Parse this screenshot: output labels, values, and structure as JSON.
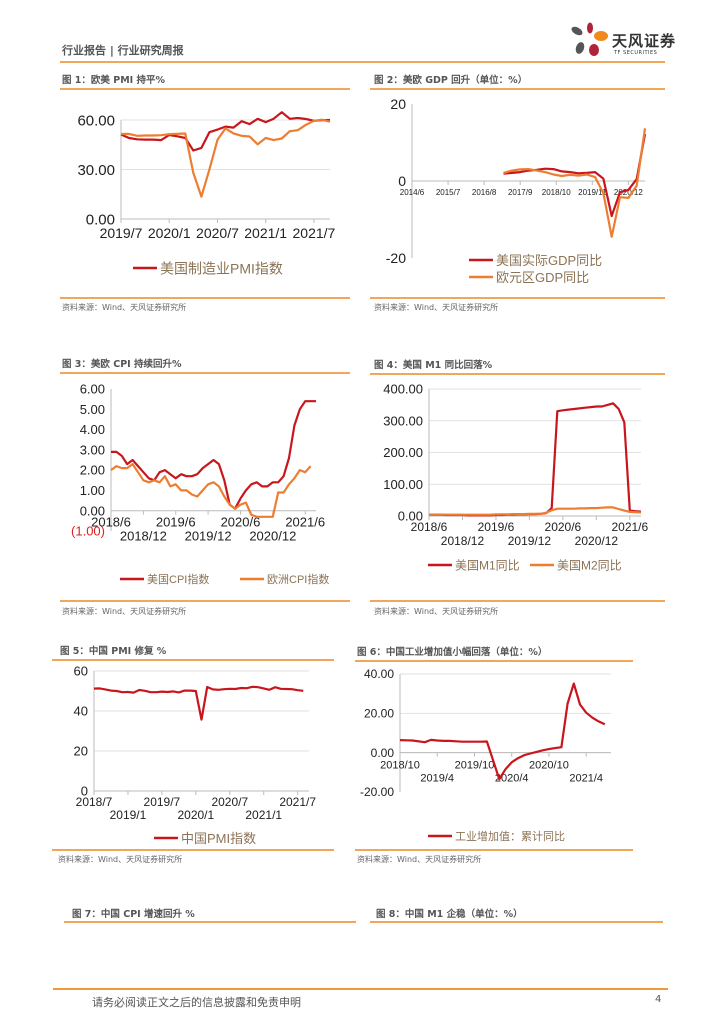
{
  "header": {
    "report_type": "行业报告 | 行业研究周报"
  },
  "logo": {
    "name": "天风证券",
    "sub": "TF SECURITIES"
  },
  "figures": [
    {
      "title": "图 1：欧美 PMI 持平%",
      "source": "资料来源：Wind、天风证券研究所"
    },
    {
      "title": "图 2：美欧 GDP 回升（单位：%）",
      "source": "资料来源：Wind、天风证券研究所"
    },
    {
      "title": "图 3：美欧 CPI 持续回升%",
      "source": "资料来源：Wind、天风证券研究所"
    },
    {
      "title": "图 4：美国 M1 同比回落%",
      "source": "资料来源：Wind、天风证券研究所"
    },
    {
      "title": "图 5：中国 PMI 修复 %",
      "source": "资料来源：Wind、天风证券研究所"
    },
    {
      "title": "图 6：中国工业增加值小幅回落（单位：%）",
      "source": "资料来源：Wind、天风证券研究所"
    },
    {
      "title": "图 7：中国 CPI 增速回升 %"
    },
    {
      "title": "图 8：中国 M1 企稳（单位：%）"
    }
  ],
  "footer": {
    "disclaimer": "请务必阅读正文之后的信息披露和免责申明",
    "page_number": "4"
  },
  "colors": {
    "accent": "#F2A65A",
    "red": "#C8161D",
    "orange": "#ED7D31",
    "legend_text": "#8B7355",
    "negative_label": "#E02020"
  },
  "chart_data": [
    {
      "type": "line",
      "grid": true,
      "legend": "bottom",
      "xlim": [
        "2019/7",
        "2021/9"
      ],
      "ylim": [
        0,
        60
      ],
      "xticks": [
        "2019/7",
        "2020/1",
        "2020/7",
        "2021/1",
        "2021/7"
      ],
      "yticks": [
        0,
        30,
        60
      ],
      "ytick_labels": [
        "0.00",
        "30.00",
        "60.00"
      ],
      "series": [
        {
          "name": "美国制造业PMI指数",
          "color": "#C8161D",
          "start": "2019/7",
          "values": [
            51.2,
            49.1,
            48.3,
            48.1,
            48.1,
            47.8,
            50.9,
            50.1,
            49.1,
            41.5,
            43.1,
            52.6,
            54.2,
            56.0,
            55.4,
            59.3,
            57.5,
            60.7,
            58.7,
            60.8,
            64.7,
            60.7,
            61.2,
            60.6,
            59.5,
            59.9,
            60.0
          ]
        },
        {
          "color": "#ED7D31",
          "start": "2019/7",
          "values": [
            51.5,
            51.6,
            50.4,
            50.6,
            50.6,
            50.8,
            51.4,
            51.6,
            51.8,
            28.0,
            13.6,
            30.0,
            48.0,
            54.9,
            51.9,
            50.4,
            50.0,
            45.3,
            49.1,
            47.8,
            48.8,
            53.2,
            53.8,
            57.1,
            59.5,
            60.2,
            59.0
          ]
        }
      ]
    },
    {
      "type": "line",
      "grid": false,
      "legend": "bottom",
      "xlim": [
        "2014/6",
        "2021/6"
      ],
      "ylim": [
        -20,
        20
      ],
      "xticks": [
        "2014/6",
        "2015/7",
        "2016/8",
        "2017/9",
        "2018/10",
        "2019/11",
        "2020/12"
      ],
      "yticks": [
        -20,
        0,
        20
      ],
      "ytick_labels": [
        "-20",
        "0",
        "20"
      ],
      "series": [
        {
          "name": "美国实际GDP同比",
          "color": "#C8161D",
          "start": "2017/3",
          "step_months": 3,
          "values": [
            1.9,
            2.1,
            2.3,
            2.7,
            2.9,
            3.2,
            3.1,
            2.5,
            2.3,
            2.0,
            2.1,
            2.3,
            0.6,
            -9.1,
            -2.9,
            -2.3,
            0.5,
            12.2
          ]
        },
        {
          "name": "欧元区GDP同比",
          "color": "#ED7D31",
          "start": "2017/3",
          "step_months": 3,
          "values": [
            2.1,
            2.7,
            3.0,
            3.1,
            2.7,
            2.3,
            1.7,
            1.3,
            1.6,
            1.4,
            1.7,
            1.0,
            -3.2,
            -14.5,
            -4.2,
            -4.4,
            -1.2,
            13.7
          ]
        }
      ]
    },
    {
      "type": "line",
      "grid": false,
      "legend": "bottom",
      "xlim": [
        "2018/6",
        "2021/8"
      ],
      "ylim": [
        -1,
        6
      ],
      "xticks": [
        "2018/6",
        "2018/12",
        "2019/6",
        "2019/12",
        "2020/6",
        "2020/12",
        "2021/6"
      ],
      "yticks": [
        -1,
        0,
        1,
        2,
        3,
        4,
        5,
        6
      ],
      "ytick_labels": [
        "(1.00)",
        "0.00",
        "1.00",
        "2.00",
        "3.00",
        "4.00",
        "5.00",
        "6.00"
      ],
      "series": [
        {
          "name": "美国CPI指数",
          "color": "#C8161D",
          "start": "2018/6",
          "values": [
            2.9,
            2.9,
            2.7,
            2.3,
            2.5,
            2.2,
            1.9,
            1.6,
            1.5,
            1.9,
            2.0,
            1.8,
            1.6,
            1.8,
            1.7,
            1.7,
            1.8,
            2.1,
            2.3,
            2.5,
            2.3,
            1.5,
            0.3,
            0.1,
            0.6,
            1.0,
            1.3,
            1.4,
            1.2,
            1.2,
            1.4,
            1.4,
            1.7,
            2.6,
            4.2,
            5.0,
            5.4,
            5.4,
            5.4
          ]
        },
        {
          "name": "欧洲CPI指数",
          "color": "#ED7D31",
          "start": "2018/6",
          "values": [
            2.0,
            2.2,
            2.1,
            2.1,
            2.3,
            1.9,
            1.5,
            1.4,
            1.5,
            1.4,
            1.7,
            1.2,
            1.3,
            1.0,
            1.0,
            0.8,
            0.7,
            1.0,
            1.3,
            1.4,
            1.2,
            0.7,
            0.3,
            0.1,
            0.3,
            0.4,
            -0.2,
            -0.3,
            -0.3,
            -0.3,
            -0.3,
            0.9,
            0.9,
            1.3,
            1.6,
            2.0,
            1.9,
            2.2
          ]
        }
      ]
    },
    {
      "type": "line",
      "grid": true,
      "legend": "bottom",
      "xlim": [
        "2018/6",
        "2021/8"
      ],
      "ylim": [
        0,
        400
      ],
      "xticks": [
        "2018/6",
        "2018/12",
        "2019/6",
        "2019/12",
        "2020/6",
        "2020/12",
        "2021/6"
      ],
      "yticks": [
        0,
        100,
        200,
        300,
        400
      ],
      "ytick_labels": [
        "0.00",
        "100.00",
        "200.00",
        "300.00",
        "400.00"
      ],
      "series": [
        {
          "name": "美国M1同比",
          "color": "#C8161D",
          "start": "2018/6",
          "values": [
            4,
            4,
            4,
            3,
            3,
            3,
            3,
            2,
            2,
            2,
            2,
            2,
            3,
            3,
            4,
            4,
            5,
            5,
            6,
            6,
            7,
            9,
            25,
            330,
            333,
            335,
            337,
            339,
            341,
            343,
            345,
            345,
            350,
            355,
            337,
            295,
            17,
            15,
            14
          ]
        },
        {
          "name": "美国M2同比",
          "color": "#ED7D31",
          "start": "2018/6",
          "values": [
            4,
            4,
            4,
            4,
            4,
            4,
            4,
            4,
            4,
            4,
            4,
            4,
            5,
            5,
            5,
            6,
            6,
            6,
            7,
            7,
            7,
            10,
            18,
            23,
            23,
            23,
            23,
            24,
            24,
            25,
            25,
            26,
            27,
            27,
            22,
            17,
            13,
            12,
            11
          ]
        }
      ]
    },
    {
      "type": "line",
      "grid": true,
      "legend": "bottom",
      "xlim": [
        "2018/7",
        "2021/9"
      ],
      "ylim": [
        0,
        60
      ],
      "xticks": [
        "2018/7",
        "2019/1",
        "2019/7",
        "2020/1",
        "2020/7",
        "2021/1",
        "2021/7"
      ],
      "yticks": [
        0,
        20,
        40,
        60
      ],
      "ytick_labels": [
        "0",
        "20",
        "40",
        "60"
      ],
      "series": [
        {
          "name": "中国PMI指数",
          "color": "#C8161D",
          "start": "2018/7",
          "values": [
            51.2,
            51.3,
            50.8,
            50.2,
            50.0,
            49.4,
            49.5,
            49.2,
            50.5,
            50.1,
            49.4,
            49.4,
            49.7,
            49.5,
            49.8,
            49.3,
            50.2,
            50.2,
            50.0,
            35.7,
            52.0,
            50.8,
            50.6,
            50.9,
            51.1,
            51.0,
            51.5,
            51.4,
            52.1,
            51.9,
            51.3,
            50.6,
            51.9,
            51.1,
            51.0,
            50.9,
            50.4,
            50.1
          ]
        }
      ]
    },
    {
      "type": "line",
      "grid": true,
      "legend": "bottom",
      "xlim": [
        "2018/10",
        "2021/8"
      ],
      "ylim": [
        -20,
        40
      ],
      "xticks": [
        "2018/10",
        "2019/4",
        "2019/10",
        "2020/4",
        "2020/10",
        "2021/4"
      ],
      "yticks": [
        -20,
        0,
        20,
        40
      ],
      "ytick_labels": [
        "-20.00",
        "0.00",
        "20.00",
        "40.00"
      ],
      "series": [
        {
          "name": "工业增加值：累计同比",
          "color": "#C8161D",
          "x": [
            "2018/10",
            "2018/11",
            "2018/12",
            "2019/2",
            "2019/3",
            "2019/4",
            "2019/5",
            "2019/6",
            "2019/7",
            "2019/8",
            "2019/9",
            "2019/10",
            "2019/11",
            "2019/12",
            "2020/2",
            "2020/3",
            "2020/4",
            "2020/5",
            "2020/6",
            "2020/7",
            "2020/8",
            "2020/9",
            "2020/10",
            "2020/11",
            "2020/12",
            "2021/1",
            "2021/2",
            "2021/3",
            "2021/4",
            "2021/5",
            "2021/6",
            "2021/7"
          ],
          "values": [
            6.4,
            6.3,
            6.2,
            5.3,
            6.5,
            6.2,
            6.0,
            6.0,
            5.8,
            5.6,
            5.6,
            5.6,
            5.6,
            5.7,
            -13.5,
            -8.4,
            -4.9,
            -2.8,
            -1.3,
            -0.4,
            0.4,
            1.2,
            1.8,
            2.3,
            2.8,
            25.0,
            35.1,
            24.5,
            20.3,
            17.8,
            15.9,
            14.4
          ]
        }
      ]
    }
  ]
}
